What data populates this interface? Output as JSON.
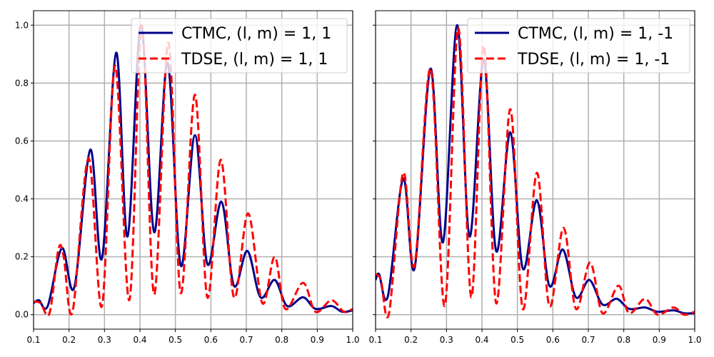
{
  "chart_data": [
    {
      "type": "line",
      "xlim": [
        0.1,
        1.0
      ],
      "ylim": [
        -0.05,
        1.05
      ],
      "x_ticks": [
        "0.1",
        "0.2",
        "0.3",
        "0.4",
        "0.5",
        "0.6",
        "0.7",
        "0.8",
        "0.9",
        "1.0"
      ],
      "y_ticks": [
        "0.0",
        "0.2",
        "0.4",
        "0.6",
        "0.8",
        "1.0"
      ],
      "grid": true,
      "legend": "top-right",
      "series": [
        {
          "name": "CTMC,  (l, m) = 1, 1",
          "color": "#00008b",
          "style": "solid",
          "points": [
            [
              0.1,
              0.04
            ],
            [
              0.115,
              0.05
            ],
            [
              0.14,
              0.03
            ],
            [
              0.18,
              0.23
            ],
            [
              0.215,
              0.095
            ],
            [
              0.26,
              0.57
            ],
            [
              0.293,
              0.195
            ],
            [
              0.333,
              0.905
            ],
            [
              0.365,
              0.27
            ],
            [
              0.403,
              1.0
            ],
            [
              0.44,
              0.285
            ],
            [
              0.478,
              0.87
            ],
            [
              0.515,
              0.17
            ],
            [
              0.555,
              0.62
            ],
            [
              0.59,
              0.175
            ],
            [
              0.63,
              0.39
            ],
            [
              0.665,
              0.1
            ],
            [
              0.703,
              0.22
            ],
            [
              0.74,
              0.06
            ],
            [
              0.78,
              0.12
            ],
            [
              0.815,
              0.03
            ],
            [
              0.86,
              0.06
            ],
            [
              0.895,
              0.02
            ],
            [
              0.94,
              0.03
            ],
            [
              0.97,
              0.01
            ],
            [
              1.0,
              0.015
            ]
          ]
        },
        {
          "name": "TDSE,  (l, m) = 1, 1",
          "color": "#ff0000",
          "style": "dashed",
          "points": [
            [
              0.1,
              0.045
            ],
            [
              0.12,
              0.04
            ],
            [
              0.145,
              0.005
            ],
            [
              0.17,
              0.225
            ],
            [
              0.185,
              0.2
            ],
            [
              0.21,
              0.01
            ],
            [
              0.255,
              0.54
            ],
            [
              0.293,
              0.03
            ],
            [
              0.33,
              0.86
            ],
            [
              0.37,
              0.05
            ],
            [
              0.405,
              1.0
            ],
            [
              0.44,
              0.07
            ],
            [
              0.48,
              0.94
            ],
            [
              0.515,
              0.075
            ],
            [
              0.555,
              0.76
            ],
            [
              0.59,
              0.06
            ],
            [
              0.628,
              0.535
            ],
            [
              0.665,
              0.06
            ],
            [
              0.705,
              0.35
            ],
            [
              0.745,
              0.04
            ],
            [
              0.78,
              0.2
            ],
            [
              0.81,
              0.02
            ],
            [
              0.86,
              0.11
            ],
            [
              0.895,
              0.01
            ],
            [
              0.94,
              0.05
            ],
            [
              0.975,
              0.01
            ],
            [
              1.0,
              0.02
            ]
          ]
        }
      ]
    },
    {
      "type": "line",
      "xlim": [
        0.1,
        1.0
      ],
      "ylim": [
        -0.05,
        1.05
      ],
      "x_ticks": [
        "0.1",
        "0.2",
        "0.3",
        "0.4",
        "0.5",
        "0.6",
        "0.7",
        "0.8",
        "0.9",
        "1.0"
      ],
      "y_ticks": [
        "0.0",
        "0.2",
        "0.4",
        "0.6",
        "0.8",
        "1.0"
      ],
      "grid": true,
      "legend": "top-right",
      "series": [
        {
          "name": "CTMC,  (l, m) = 1, -1",
          "color": "#00008b",
          "style": "solid",
          "points": [
            [
              0.1,
              0.12
            ],
            [
              0.11,
              0.14
            ],
            [
              0.135,
              0.065
            ],
            [
              0.178,
              0.47
            ],
            [
              0.21,
              0.16
            ],
            [
              0.255,
              0.85
            ],
            [
              0.29,
              0.25
            ],
            [
              0.33,
              1.0
            ],
            [
              0.365,
              0.27
            ],
            [
              0.405,
              0.88
            ],
            [
              0.44,
              0.22
            ],
            [
              0.48,
              0.63
            ],
            [
              0.515,
              0.16
            ],
            [
              0.555,
              0.395
            ],
            [
              0.59,
              0.1
            ],
            [
              0.628,
              0.225
            ],
            [
              0.665,
              0.06
            ],
            [
              0.703,
              0.12
            ],
            [
              0.74,
              0.035
            ],
            [
              0.78,
              0.055
            ],
            [
              0.815,
              0.02
            ],
            [
              0.86,
              0.025
            ],
            [
              0.895,
              0.01
            ],
            [
              0.94,
              0.015
            ],
            [
              0.97,
              0.005
            ],
            [
              1.0,
              0.005
            ]
          ]
        },
        {
          "name": "TDSE,  (l, m) = 1, -1",
          "color": "#ff0000",
          "style": "dashed",
          "points": [
            [
              0.1,
              0.14
            ],
            [
              0.115,
              0.12
            ],
            [
              0.138,
              0.005
            ],
            [
              0.178,
              0.49
            ],
            [
              0.21,
              0.17
            ],
            [
              0.255,
              0.85
            ],
            [
              0.295,
              0.03
            ],
            [
              0.333,
              0.99
            ],
            [
              0.37,
              0.06
            ],
            [
              0.405,
              0.93
            ],
            [
              0.44,
              0.04
            ],
            [
              0.48,
              0.71
            ],
            [
              0.515,
              0.02
            ],
            [
              0.555,
              0.49
            ],
            [
              0.59,
              0.03
            ],
            [
              0.63,
              0.3
            ],
            [
              0.665,
              0.02
            ],
            [
              0.705,
              0.18
            ],
            [
              0.74,
              0.005
            ],
            [
              0.785,
              0.1
            ],
            [
              0.815,
              0.005
            ],
            [
              0.86,
              0.055
            ],
            [
              0.895,
              0.0
            ],
            [
              0.94,
              0.025
            ],
            [
              0.97,
              0.0
            ],
            [
              1.0,
              0.01
            ]
          ]
        }
      ]
    }
  ]
}
